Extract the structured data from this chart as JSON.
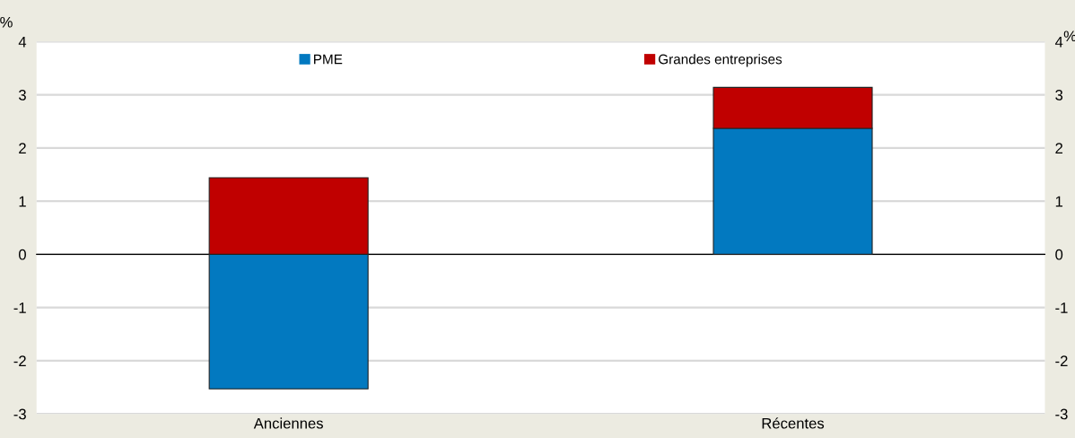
{
  "chart_data": {
    "type": "bar",
    "stacked": true,
    "ylabel": "%",
    "y2label": "%",
    "categories": [
      "Anciennes",
      "Récentes"
    ],
    "series": [
      {
        "name": "PME",
        "color": "#0279c0",
        "values": [
          -2.53,
          2.37
        ]
      },
      {
        "name": "Grandes entreprises",
        "color": "#c00000",
        "values": [
          1.44,
          0.77
        ]
      }
    ],
    "ylim": [
      -3,
      4
    ],
    "yticks": [
      -3,
      -2,
      -1,
      0,
      1,
      2,
      3,
      4
    ],
    "y2lim": [
      -3,
      4
    ],
    "y2ticks": [
      -3,
      -2,
      -1,
      0,
      1,
      2,
      3,
      4
    ],
    "grid": "y",
    "legend": "top"
  }
}
